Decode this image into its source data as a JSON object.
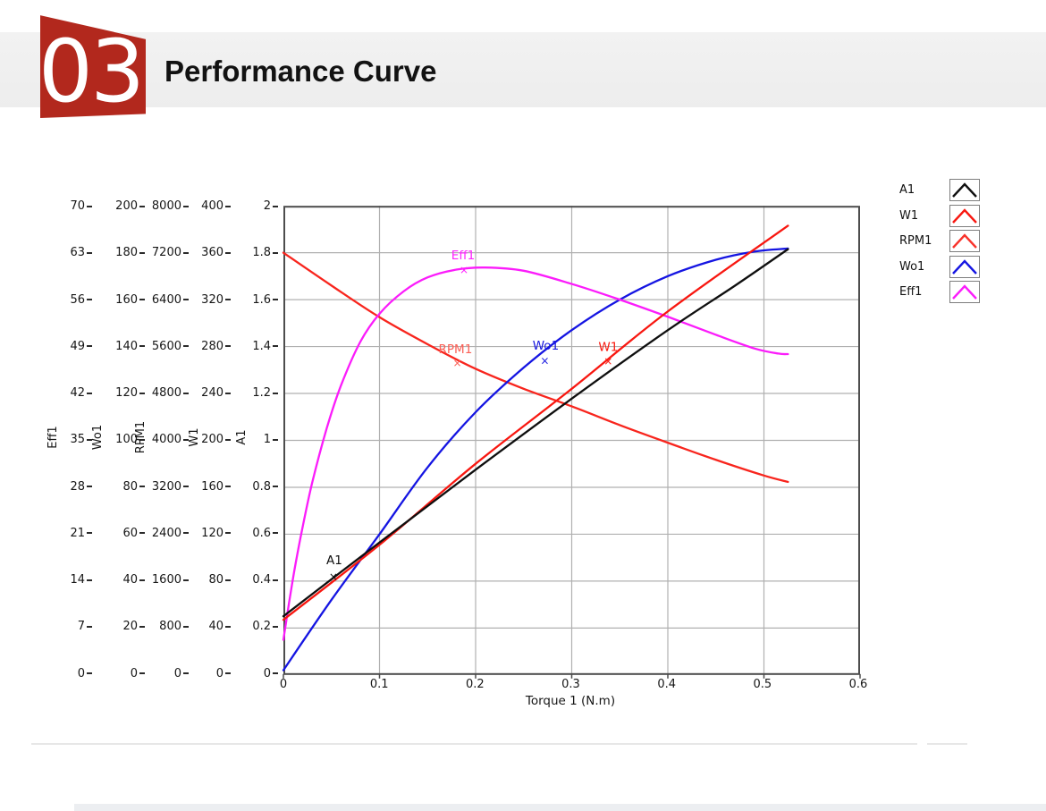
{
  "page": {
    "section_number": "03",
    "title": "Performance Curve",
    "accent_color": "#b2281d"
  },
  "chart_data": {
    "type": "line",
    "title": "Performance Curve",
    "xlabel": "Torque 1 (N.m)",
    "xlim": [
      0,
      0.6
    ],
    "x_tick_labels": [
      "0",
      "0.1",
      "0.2",
      "0.3",
      "0.4",
      "0.5",
      "0.6"
    ],
    "grid": true,
    "normalized_ylim": [
      0,
      2
    ],
    "note": "points are [torque N.m, value on shared normalized 0-2 scale]; actual unit value = norm/2*axis_max",
    "y_axes": [
      {
        "title": "Eff1",
        "axis_max": 70,
        "tick_labels": [
          "70",
          "63",
          "56",
          "49",
          "42",
          "35",
          "28",
          "21",
          "14",
          "7",
          "0"
        ]
      },
      {
        "title": "Wo1",
        "axis_max": 200,
        "tick_labels": [
          "200",
          "180",
          "160",
          "140",
          "120",
          "100",
          "80",
          "60",
          "40",
          "20",
          "0"
        ]
      },
      {
        "title": "RPM1",
        "axis_max": 8000,
        "tick_labels": [
          "8000",
          "7200",
          "6400",
          "5600",
          "4800",
          "4000",
          "3200",
          "2400",
          "1600",
          "800",
          "0"
        ]
      },
      {
        "title": "W1",
        "axis_max": 400,
        "tick_labels": [
          "400",
          "360",
          "320",
          "280",
          "240",
          "200",
          "160",
          "120",
          "80",
          "40",
          "0"
        ]
      },
      {
        "title": "A1",
        "axis_max": 2,
        "tick_labels": [
          "2",
          "1.8",
          "1.6",
          "1.4",
          "1.2",
          "1",
          "0.8",
          "0.6",
          "0.4",
          "0.2",
          "0"
        ]
      }
    ],
    "series": [
      {
        "name": "RPM1",
        "color": "#f8251d",
        "points": [
          [
            0,
            1.8
          ],
          [
            0.05,
            1.66
          ],
          [
            0.1,
            1.525
          ],
          [
            0.15,
            1.41
          ],
          [
            0.2,
            1.305
          ],
          [
            0.25,
            1.22
          ],
          [
            0.3,
            1.145
          ],
          [
            0.35,
            1.065
          ],
          [
            0.4,
            0.99
          ],
          [
            0.45,
            0.917
          ],
          [
            0.5,
            0.85
          ],
          [
            0.525,
            0.823
          ]
        ]
      },
      {
        "name": "Wo1",
        "color": "#1515e2",
        "points": [
          [
            0,
            0.02
          ],
          [
            0.05,
            0.32
          ],
          [
            0.1,
            0.6
          ],
          [
            0.15,
            0.885
          ],
          [
            0.2,
            1.12
          ],
          [
            0.25,
            1.31
          ],
          [
            0.3,
            1.47
          ],
          [
            0.35,
            1.6
          ],
          [
            0.4,
            1.7
          ],
          [
            0.45,
            1.77
          ],
          [
            0.49,
            1.805
          ],
          [
            0.525,
            1.818
          ]
        ]
      },
      {
        "name": "Eff1",
        "color": "#fb1cfb",
        "points": [
          [
            0,
            0.15
          ],
          [
            0.006,
            0.31
          ],
          [
            0.012,
            0.46
          ],
          [
            0.02,
            0.63
          ],
          [
            0.03,
            0.82
          ],
          [
            0.045,
            1.05
          ],
          [
            0.06,
            1.235
          ],
          [
            0.08,
            1.42
          ],
          [
            0.1,
            1.54
          ],
          [
            0.125,
            1.635
          ],
          [
            0.15,
            1.695
          ],
          [
            0.18,
            1.728
          ],
          [
            0.21,
            1.737
          ],
          [
            0.25,
            1.723
          ],
          [
            0.3,
            1.667
          ],
          [
            0.35,
            1.6
          ],
          [
            0.4,
            1.527
          ],
          [
            0.45,
            1.45
          ],
          [
            0.49,
            1.392
          ],
          [
            0.515,
            1.37
          ],
          [
            0.525,
            1.368
          ]
        ]
      },
      {
        "name": "W1",
        "color": "#f81710",
        "points": [
          [
            0,
            0.235
          ],
          [
            0.1,
            0.555
          ],
          [
            0.2,
            0.9
          ],
          [
            0.3,
            1.22
          ],
          [
            0.4,
            1.55
          ],
          [
            0.525,
            1.915
          ]
        ]
      },
      {
        "name": "A1",
        "color": "#0f0f0f",
        "points": [
          [
            0,
            0.25
          ],
          [
            0.1,
            0.565
          ],
          [
            0.2,
            0.875
          ],
          [
            0.3,
            1.178
          ],
          [
            0.4,
            1.47
          ],
          [
            0.47,
            1.66
          ],
          [
            0.525,
            1.815
          ]
        ]
      }
    ],
    "annotations": [
      {
        "text": "A1",
        "color": "#111111",
        "label": [
          0.053,
          0.49
        ],
        "marker": [
          0.052,
          0.42
        ]
      },
      {
        "text": "Eff1",
        "color": "#ff22ff",
        "label": [
          0.187,
          1.79
        ],
        "marker": [
          0.188,
          1.727
        ]
      },
      {
        "text": "RPM1",
        "color": "#fb6157",
        "label": [
          0.179,
          1.39
        ],
        "marker": [
          0.181,
          1.33
        ]
      },
      {
        "text": "Wo1",
        "color": "#1616e0",
        "label": [
          0.273,
          1.405
        ],
        "marker": [
          0.272,
          1.34
        ]
      },
      {
        "text": "W1",
        "color": "#fa1a10",
        "label": [
          0.338,
          1.4
        ],
        "marker": [
          0.338,
          1.338
        ]
      }
    ],
    "legend": {
      "position": "top-right",
      "items": [
        {
          "label": "A1",
          "color": "#0f0f0f"
        },
        {
          "label": "W1",
          "color": "#f81710"
        },
        {
          "label": "RPM1",
          "color": "#f8332b"
        },
        {
          "label": "Wo1",
          "color": "#1515e2"
        },
        {
          "label": "Eff1",
          "color": "#fb1cfb"
        }
      ]
    }
  }
}
